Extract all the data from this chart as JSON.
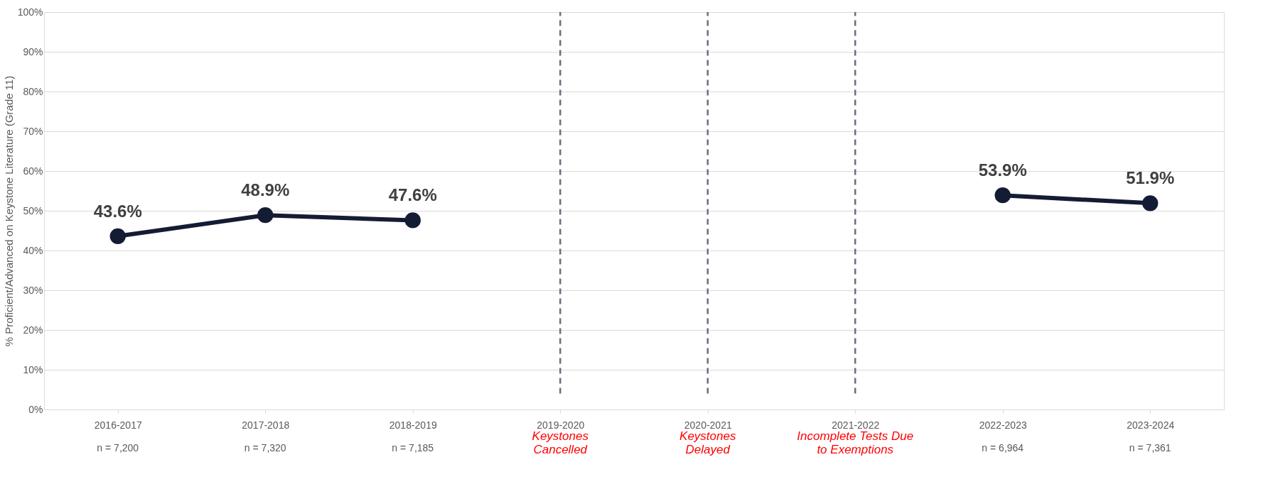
{
  "chart_data": {
    "type": "line",
    "ylabel": "% Proficient/Advanced on Keystone Literature (Grade 11)",
    "categories": [
      "2016-2017",
      "2017-2018",
      "2018-2019",
      "2019-2020",
      "2020-2021",
      "2021-2022",
      "2022-2023",
      "2023-2024"
    ],
    "series": [
      {
        "color": "#141c35",
        "values": [
          43.6,
          48.9,
          47.6,
          null,
          null,
          null,
          53.9,
          51.9
        ],
        "value_labels": [
          "43.6%",
          "48.9%",
          "47.6%",
          null,
          null,
          null,
          "53.9%",
          "51.9%"
        ]
      }
    ],
    "ylim": [
      0,
      100
    ],
    "yticks": [
      {
        "value": 0,
        "label": "0%"
      },
      {
        "value": 10,
        "label": "10%"
      },
      {
        "value": 20,
        "label": "20%"
      },
      {
        "value": 30,
        "label": "30%"
      },
      {
        "value": 40,
        "label": "40%"
      },
      {
        "value": 50,
        "label": "50%"
      },
      {
        "value": 60,
        "label": "60%"
      },
      {
        "value": 70,
        "label": "70%"
      },
      {
        "value": 80,
        "label": "80%"
      },
      {
        "value": 90,
        "label": "90%"
      },
      {
        "value": 100,
        "label": "100%"
      }
    ],
    "grid": "y",
    "marker": "circle",
    "line_style": "solid",
    "ref_lines": [
      {
        "axis": "x",
        "value": "2019-2020",
        "color": "#6b6e7e",
        "line_style": "dashed"
      },
      {
        "axis": "x",
        "value": "2020-2021",
        "color": "#6b6e7e",
        "line_style": "dashed"
      },
      {
        "axis": "x",
        "value": "2021-2022",
        "color": "#6b6e7e",
        "line_style": "dashed"
      }
    ],
    "annotations": [
      "n = 7,200",
      "n = 7,320",
      "n = 7,185",
      "n = 6,964",
      "n = 7,361",
      "Keystones\nCancelled",
      "Keystones\nDelayed",
      "Incomplete Tests Due\nto Exemptions"
    ]
  }
}
